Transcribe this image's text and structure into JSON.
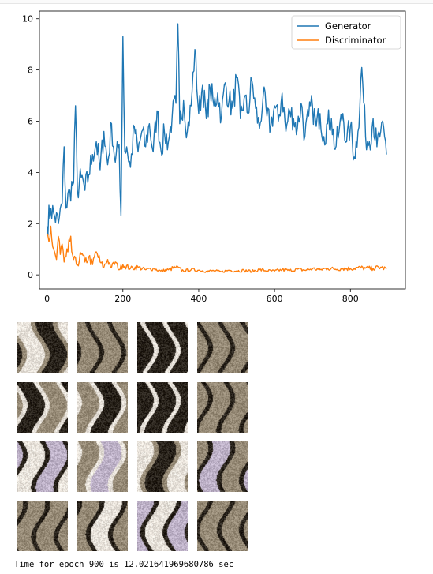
{
  "chart_data": {
    "type": "line",
    "title": "",
    "xlabel": "",
    "ylabel": "",
    "xlim": [
      -20,
      945
    ],
    "ylim": [
      -0.55,
      10.3
    ],
    "xticks": [
      0,
      200,
      400,
      600,
      800
    ],
    "yticks": [
      0,
      2,
      4,
      6,
      8,
      10
    ],
    "grid": false,
    "legend_position": "top-right",
    "series": [
      {
        "name": "Generator",
        "color": "#1f77b4",
        "x": [
          0,
          10,
          20,
          30,
          40,
          45,
          50,
          60,
          70,
          75,
          80,
          90,
          100,
          110,
          120,
          130,
          140,
          150,
          160,
          170,
          180,
          190,
          195,
          200,
          205,
          210,
          220,
          230,
          240,
          250,
          260,
          270,
          280,
          290,
          300,
          310,
          320,
          330,
          340,
          345,
          350,
          360,
          370,
          380,
          390,
          400,
          410,
          420,
          430,
          440,
          450,
          460,
          470,
          480,
          490,
          500,
          510,
          520,
          530,
          540,
          550,
          560,
          570,
          580,
          590,
          600,
          610,
          620,
          630,
          640,
          650,
          660,
          670,
          680,
          690,
          700,
          710,
          720,
          730,
          740,
          750,
          760,
          770,
          780,
          790,
          800,
          810,
          820,
          830,
          840,
          850,
          860,
          870,
          880,
          890,
          895
        ],
        "values": [
          1.9,
          2.6,
          2.3,
          2.0,
          2.8,
          5.0,
          2.6,
          3.3,
          3.6,
          6.6,
          3.3,
          3.8,
          3.3,
          3.9,
          4.7,
          5.2,
          4.1,
          5.6,
          4.3,
          5.9,
          4.4,
          5.1,
          2.3,
          9.3,
          4.8,
          5.0,
          4.2,
          5.8,
          4.8,
          5.6,
          5.0,
          5.9,
          4.8,
          6.4,
          4.9,
          5.5,
          5.2,
          6.2,
          6.7,
          9.8,
          5.9,
          6.8,
          5.6,
          6.6,
          8.8,
          6.3,
          7.4,
          6.1,
          7.3,
          6.6,
          7.1,
          6.2,
          7.5,
          6.8,
          6.5,
          7.7,
          6.1,
          6.9,
          6.3,
          7.6,
          6.5,
          5.7,
          7.0,
          6.2,
          5.8,
          6.6,
          6.0,
          7.1,
          5.6,
          6.4,
          6.1,
          5.7,
          6.7,
          5.4,
          6.2,
          6.6,
          5.8,
          6.3,
          5.4,
          5.9,
          6.1,
          4.9,
          5.6,
          6.3,
          5.2,
          5.8,
          4.6,
          5.6,
          8.1,
          5.4,
          5.2,
          6.1,
          5.0,
          5.6,
          5.4,
          4.7
        ]
      },
      {
        "name": "Discriminator",
        "color": "#ff7f0e",
        "x": [
          0,
          5,
          10,
          15,
          20,
          25,
          30,
          35,
          40,
          45,
          50,
          55,
          60,
          70,
          80,
          90,
          100,
          110,
          120,
          130,
          140,
          150,
          160,
          170,
          180,
          190,
          200,
          220,
          240,
          260,
          280,
          300,
          320,
          340,
          360,
          380,
          400,
          420,
          440,
          460,
          480,
          500,
          520,
          540,
          560,
          580,
          600,
          620,
          640,
          660,
          680,
          700,
          720,
          740,
          760,
          780,
          800,
          820,
          840,
          860,
          880,
          895
        ],
        "values": [
          1.6,
          1.3,
          1.9,
          1.1,
          0.9,
          0.6,
          1.5,
          0.8,
          1.2,
          0.5,
          0.7,
          0.9,
          1.3,
          0.6,
          0.4,
          0.8,
          0.5,
          0.7,
          0.4,
          0.9,
          0.5,
          0.3,
          0.6,
          0.3,
          0.5,
          0.2,
          0.4,
          0.25,
          0.3,
          0.2,
          0.25,
          0.15,
          0.2,
          0.3,
          0.15,
          0.2,
          0.18,
          0.14,
          0.16,
          0.12,
          0.18,
          0.15,
          0.17,
          0.14,
          0.2,
          0.16,
          0.15,
          0.2,
          0.17,
          0.22,
          0.18,
          0.24,
          0.2,
          0.26,
          0.22,
          0.25,
          0.24,
          0.28,
          0.26,
          0.25,
          0.3,
          0.23
        ]
      }
    ]
  },
  "sample_grid": {
    "rows": 4,
    "cols": 4,
    "palette_hint": [
      "dark-brown",
      "grey-beige",
      "cream-white",
      "violet-tint"
    ]
  },
  "log": {
    "text": "Time for epoch 900 is 12.021641969680786 sec"
  }
}
